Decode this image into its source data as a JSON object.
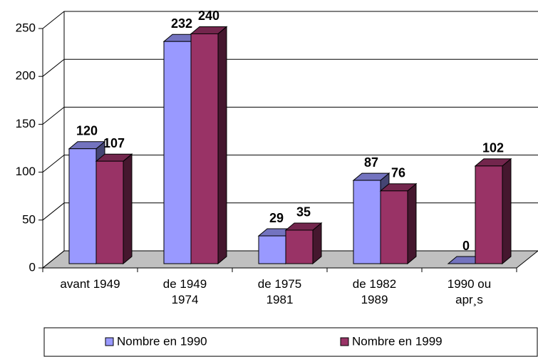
{
  "chart_data": {
    "type": "bar3d",
    "categories": [
      [
        "avant 1949"
      ],
      [
        "de 1949",
        "1974"
      ],
      [
        "de 1975",
        "1981"
      ],
      [
        "de 1982",
        "1989"
      ],
      [
        "1990 ou",
        "apr¸s"
      ]
    ],
    "series": [
      {
        "name": "Nombre en 1990",
        "color": "#9999ff",
        "values": [
          120,
          232,
          29,
          87,
          0
        ]
      },
      {
        "name": "Nombre en 1999",
        "color": "#993366",
        "values": [
          107,
          240,
          35,
          76,
          102
        ]
      }
    ],
    "ylim": [
      0,
      250
    ],
    "yticks": [
      0,
      50,
      100,
      150,
      200,
      250
    ],
    "grid": true,
    "legend": "bottom"
  }
}
